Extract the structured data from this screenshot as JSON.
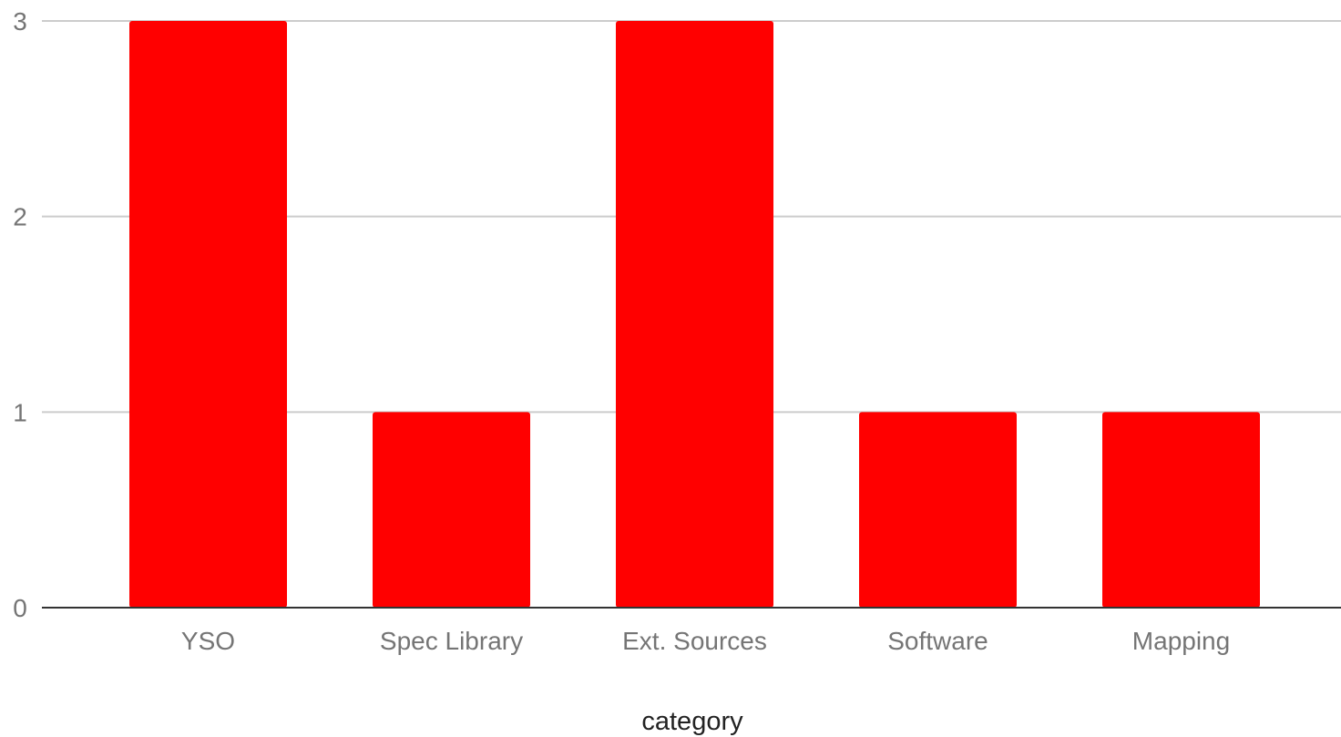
{
  "chart_data": {
    "type": "bar",
    "categories": [
      "YSO",
      "Spec Library",
      "Ext. Sources",
      "Software",
      "Mapping"
    ],
    "series": [
      {
        "values": [
          3,
          1,
          3,
          1,
          1
        ],
        "color": "#ff0000"
      }
    ],
    "xlabel": "category",
    "ylabel": "",
    "ylim": [
      0,
      3
    ],
    "yticks": [
      0,
      1,
      2,
      3
    ],
    "grid": true,
    "legend": "none"
  }
}
